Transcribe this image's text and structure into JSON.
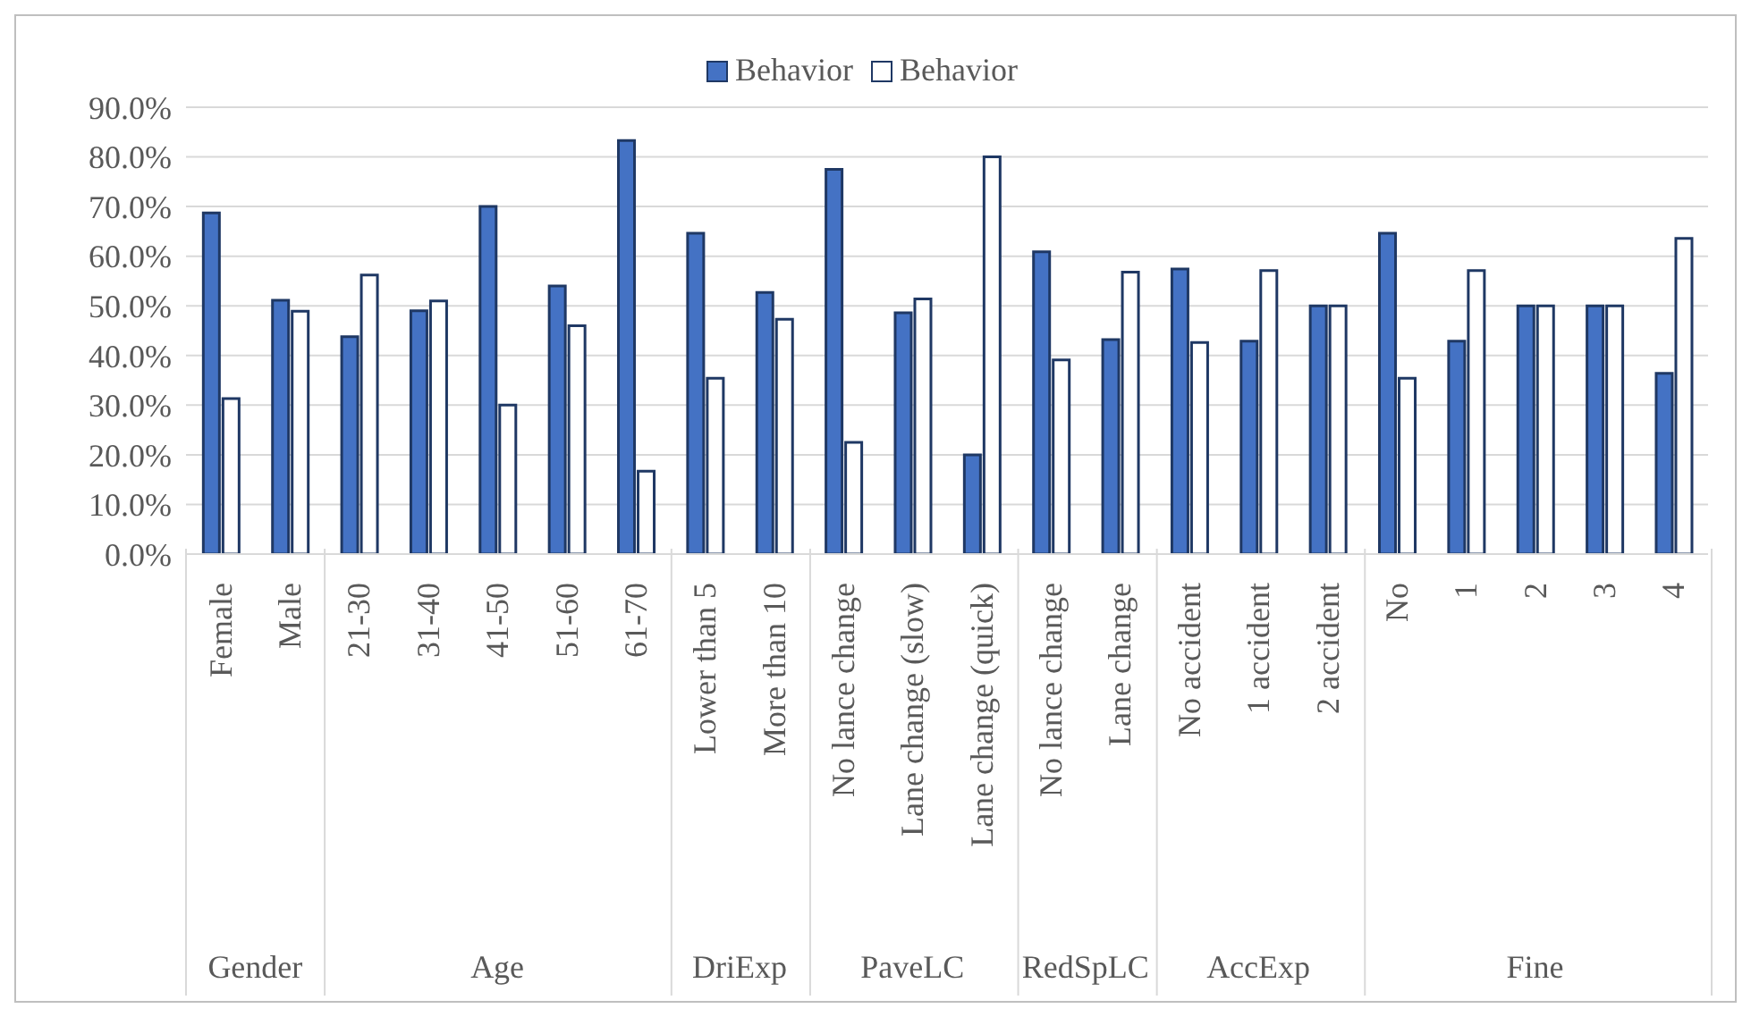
{
  "chart_data": {
    "type": "bar",
    "categories": [
      "Female",
      "Male",
      "21-30",
      "31-40",
      "41-50",
      "51-60",
      "61-70",
      "Lower than 5",
      "More than 10",
      "No lance change",
      "Lane change (slow)",
      "Lane change (quick)",
      "No lance change",
      "Lane change",
      "No accident",
      "1 accident",
      "2 accident",
      "No",
      "1",
      "2",
      "3",
      "4"
    ],
    "series": [
      {
        "name": "Behavior",
        "color": "#4472c4",
        "values": [
          68.7,
          51.1,
          43.8,
          49.0,
          70.0,
          54.0,
          83.3,
          64.6,
          52.7,
          77.5,
          48.6,
          20.0,
          60.9,
          43.2,
          57.4,
          42.9,
          50.0,
          64.6,
          42.9,
          50.0,
          50.0,
          36.4
        ]
      },
      {
        "name": "Behavior",
        "color": "#ffffff",
        "values": [
          31.3,
          48.9,
          56.2,
          51.0,
          30.0,
          46.0,
          16.7,
          35.4,
          47.3,
          22.5,
          51.4,
          80.0,
          39.1,
          56.8,
          42.6,
          57.1,
          50.0,
          35.4,
          57.1,
          50.0,
          50.0,
          63.6
        ]
      }
    ],
    "annotations": [
      "Gender",
      "Age",
      "DriExp",
      "PaveLC",
      "RedSpLC",
      "AccExp",
      "Fine"
    ],
    "ylim": [
      0,
      90
    ],
    "yticks": [
      {
        "value": 0,
        "label": "0.0%"
      },
      {
        "value": 10,
        "label": "10.0%"
      },
      {
        "value": 20,
        "label": "20.0%"
      },
      {
        "value": 30,
        "label": "30.0%"
      },
      {
        "value": 40,
        "label": "40.0%"
      },
      {
        "value": 50,
        "label": "50.0%"
      },
      {
        "value": 60,
        "label": "60.0%"
      },
      {
        "value": 70,
        "label": "70.0%"
      },
      {
        "value": 80,
        "label": "80.0%"
      },
      {
        "value": 90,
        "label": "90.0%"
      }
    ],
    "grid": "y",
    "legend": "top"
  }
}
